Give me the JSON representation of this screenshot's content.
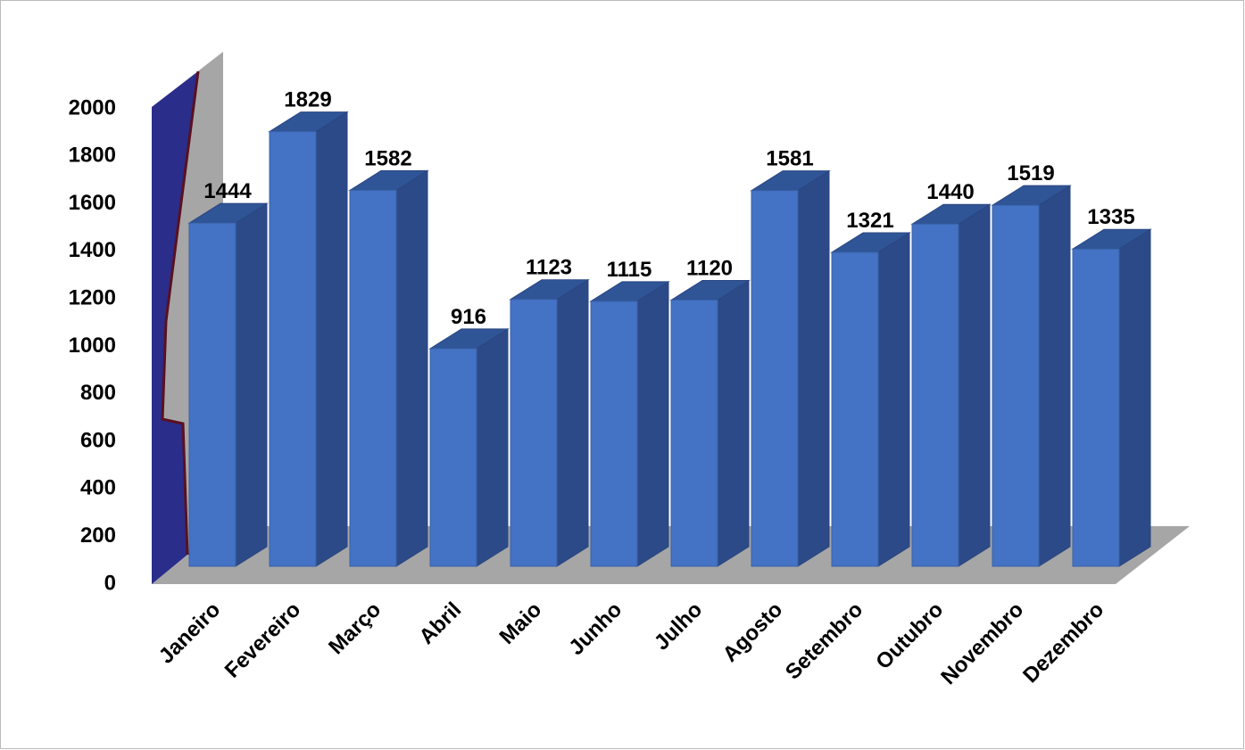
{
  "chart_data": {
    "type": "bar3d",
    "categories": [
      "Janeiro",
      "Fevereiro",
      "Março",
      "Abril",
      "Maio",
      "Junho",
      "Julho",
      "Agosto",
      "Setembro",
      "Outubro",
      "Novembro",
      "Dezembro"
    ],
    "values": [
      1444,
      1829,
      1582,
      916,
      1123,
      1115,
      1120,
      1581,
      1321,
      1440,
      1519,
      1335
    ],
    "color": "#4472c4",
    "ylim": [
      0,
      2000
    ],
    "yticks": [
      0,
      200,
      400,
      600,
      800,
      1000,
      1200,
      1400,
      1600,
      1800,
      2000
    ],
    "grid": false
  }
}
